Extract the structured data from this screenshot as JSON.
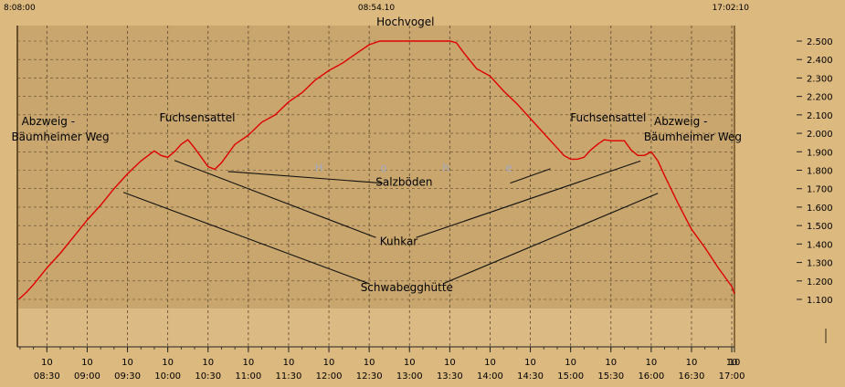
{
  "header": {
    "time_left": "8:08:00",
    "time_center": "08:54.10",
    "time_right": "17:02:10"
  },
  "watermark": [
    "H",
    "o",
    "h",
    "e"
  ],
  "colors": {
    "background": "#dcb97f",
    "plot_area": "#c8a66d",
    "lower_band": "#dcba84",
    "grid": "#5a4630",
    "line": "#e00000",
    "watermark": "#a7aac0"
  },
  "chart_data": {
    "type": "line",
    "title": "",
    "xlabel": "",
    "ylabel": "",
    "x_unit": "time of day",
    "xlim": [
      "08:08",
      "17:02"
    ],
    "ylim": [
      1050,
      2550
    ],
    "y_axis_position": "right",
    "grid": true,
    "x_ticks_top": [
      "10",
      "10",
      "10",
      "10",
      "10",
      "10",
      "10",
      "10",
      "10",
      "10",
      "10",
      "10",
      "10",
      "10",
      "10",
      "10",
      "10",
      "10",
      "10"
    ],
    "x_ticks": [
      "08:30",
      "09:00",
      "09:30",
      "10:00",
      "10:30",
      "11:00",
      "11:30",
      "12:00",
      "12:30",
      "13:00",
      "13:30",
      "14:00",
      "14:30",
      "15:00",
      "15:30",
      "16:00",
      "16:30",
      "17:00"
    ],
    "y_ticks": [
      2500,
      2400,
      2300,
      2200,
      2100,
      2000,
      1900,
      1800,
      1700,
      1600,
      1500,
      1400,
      1300,
      1200,
      1100
    ],
    "y_tick_labels": [
      "2.500",
      "2.400",
      "2.300",
      "2.200",
      "2.100",
      "2.000",
      "1.900",
      "1.800",
      "1.700",
      "1.600",
      "1.500",
      "1.400",
      "1.300",
      "1.200",
      "1.100"
    ],
    "series": [
      {
        "x": [
          "08:09",
          "08:15",
          "08:20",
          "08:30",
          "08:40",
          "08:50",
          "09:00",
          "09:10",
          "09:20",
          "09:30",
          "09:40",
          "09:50",
          "09:55",
          "10:00",
          "10:05",
          "10:10",
          "10:15",
          "10:20",
          "10:25",
          "10:30",
          "10:35",
          "10:40",
          "10:45",
          "10:50",
          "11:00",
          "11:10",
          "11:20",
          "11:30",
          "11:40",
          "11:50",
          "12:00",
          "12:10",
          "12:20",
          "12:30",
          "12:38",
          "12:45",
          "13:00",
          "13:15",
          "13:30",
          "13:35",
          "13:40",
          "13:50",
          "14:00",
          "14:10",
          "14:20",
          "14:30",
          "14:40",
          "14:50",
          "14:55",
          "15:00",
          "15:05",
          "15:10",
          "15:15",
          "15:20",
          "15:25",
          "15:30",
          "15:35",
          "15:40",
          "15:45",
          "15:50",
          "15:55",
          "16:00",
          "16:05",
          "16:10",
          "16:20",
          "16:30",
          "16:40",
          "16:50",
          "17:00",
          "17:02"
        ],
        "y": [
          1100,
          1140,
          1180,
          1270,
          1350,
          1440,
          1530,
          1610,
          1700,
          1780,
          1850,
          1905,
          1880,
          1870,
          1900,
          1940,
          1965,
          1920,
          1870,
          1820,
          1805,
          1840,
          1890,
          1940,
          1990,
          2060,
          2100,
          2170,
          2220,
          2290,
          2340,
          2380,
          2430,
          2480,
          2500,
          2500,
          2500,
          2500,
          2500,
          2490,
          2440,
          2350,
          2310,
          2230,
          2160,
          2080,
          2000,
          1920,
          1880,
          1860,
          1860,
          1870,
          1910,
          1940,
          1965,
          1960,
          1960,
          1960,
          1910,
          1880,
          1880,
          1900,
          1850,
          1770,
          1620,
          1480,
          1380,
          1270,
          1170,
          1130
        ],
        "color": "#e00000"
      }
    ],
    "annotations": [
      {
        "text": "Hochvogel",
        "x": "12:57",
        "y": 2583
      },
      {
        "text": "Abzweig -",
        "x": "08:31",
        "y": 2045
      },
      {
        "text": "Bäumheimer Weg",
        "x": "08:40",
        "y": 1960
      },
      {
        "text": "Fuchsensattel",
        "x": "10:22",
        "y": 2065
      },
      {
        "text": "Salzböden",
        "x": "12:56",
        "y": 1715
      },
      {
        "text": "Kuhkar",
        "x": "12:52",
        "y": 1395
      },
      {
        "text": "Schwabegghütte",
        "x": "12:58",
        "y": 1145
      },
      {
        "text": "Fuchsensattel",
        "x": "15:28",
        "y": 2065
      },
      {
        "text": "Abzweig -",
        "x": "16:22",
        "y": 2045
      },
      {
        "text": "Bäumheimer Weg",
        "x": "16:31",
        "y": 1960
      }
    ],
    "leader_lines": [
      {
        "from": [
          "10:45",
          1793
        ],
        "to": [
          "12:40",
          1730
        ]
      },
      {
        "from": [
          "14:15",
          1730
        ],
        "to": [
          "14:45",
          1808
        ]
      },
      {
        "from": [
          "10:05",
          1853
        ],
        "to": [
          "12:35",
          1435
        ]
      },
      {
        "from": [
          "13:05",
          1435
        ],
        "to": [
          "15:52",
          1850
        ]
      },
      {
        "from": [
          "09:27",
          1680
        ],
        "to": [
          "12:30",
          1185
        ]
      },
      {
        "from": [
          "13:25",
          1185
        ],
        "to": [
          "16:05",
          1675
        ]
      }
    ]
  }
}
